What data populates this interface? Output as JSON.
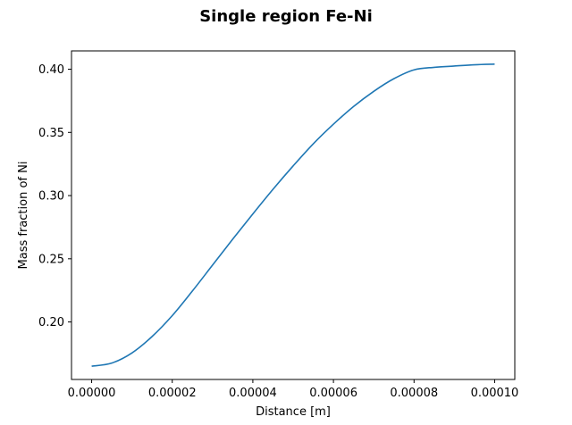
{
  "chart_data": {
    "type": "line",
    "title": "Single region Fe-Ni",
    "xlabel": "Distance [m]",
    "ylabel": "Mass fraction of Ni",
    "xlim": [
      -5e-06,
      0.000105
    ],
    "ylim": [
      0.1545,
      0.4145
    ],
    "xticks": [
      0.0,
      2e-05,
      4e-05,
      6e-05,
      8e-05,
      0.0001
    ],
    "xtick_labels": [
      "0.00000",
      "0.00002",
      "0.00004",
      "0.00006",
      "0.00008",
      "0.00010"
    ],
    "yticks": [
      0.2,
      0.25,
      0.3,
      0.35,
      0.4
    ],
    "ytick_labels": [
      "0.20",
      "0.25",
      "0.30",
      "0.35",
      "0.40"
    ],
    "grid": false,
    "series": [
      {
        "color": "#1f77b4",
        "x": [
          0.0,
          5e-06,
          1e-05,
          1.5e-05,
          2e-05,
          2.5e-05,
          3e-05,
          3.5e-05,
          4e-05,
          4.5e-05,
          5e-05,
          5.5e-05,
          6e-05,
          6.5e-05,
          7e-05,
          7.5e-05,
          8e-05,
          8.5e-05,
          9e-05,
          9.5e-05,
          0.0001
        ],
        "y": [
          0.165,
          0.1675,
          0.1755,
          0.1885,
          0.205,
          0.2245,
          0.245,
          0.2655,
          0.2855,
          0.305,
          0.3235,
          0.341,
          0.3565,
          0.3705,
          0.3825,
          0.3925,
          0.3995,
          0.4015,
          0.4025,
          0.4035,
          0.404
        ]
      }
    ]
  }
}
